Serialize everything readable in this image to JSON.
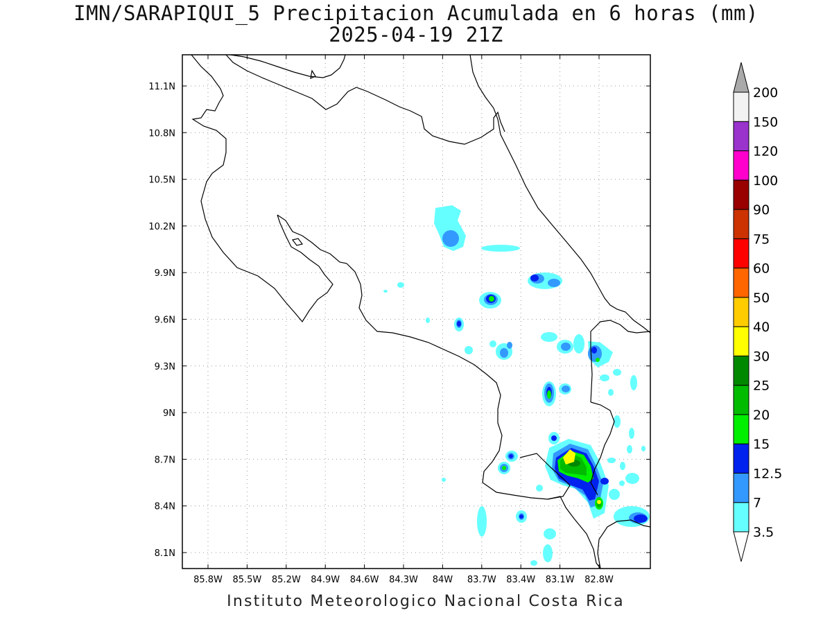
{
  "title": {
    "line1": "IMN/SARAPIQUI_5 Precipitacion Acumulada en 6 horas (mm)",
    "line2": "2025-04-19 21Z"
  },
  "footer": "Instituto Meteorologico Nacional Costa Rica",
  "map": {
    "lon_ticks": [
      "85.8W",
      "85.5W",
      "85.2W",
      "84.9W",
      "84.6W",
      "84.3W",
      "84W",
      "83.7W",
      "83.4W",
      "83.1W",
      "82.8W"
    ],
    "lat_ticks": [
      "11.1N",
      "10.8N",
      "10.5N",
      "10.2N",
      "9.9N",
      "9.6N",
      "9.3N",
      "9N",
      "8.7N",
      "8.4N",
      "8.1N"
    ],
    "grid": "dotted"
  },
  "colorbar": {
    "labels": [
      "3.5",
      "7",
      "12.5",
      "15",
      "20",
      "25",
      "30",
      "40",
      "50",
      "60",
      "75",
      "90",
      "100",
      "120",
      "150",
      "200"
    ],
    "colors": [
      "#66ffff",
      "#3399ff",
      "#0022ee",
      "#00ee00",
      "#00bb00",
      "#008800",
      "#ffff00",
      "#ffcc00",
      "#ff6600",
      "#ff0000",
      "#cc3300",
      "#990000",
      "#ff00cc",
      "#9933cc",
      "#f2f2f2"
    ],
    "under_color": "#ffffff",
    "over_color": "#aaaaaa"
  }
}
